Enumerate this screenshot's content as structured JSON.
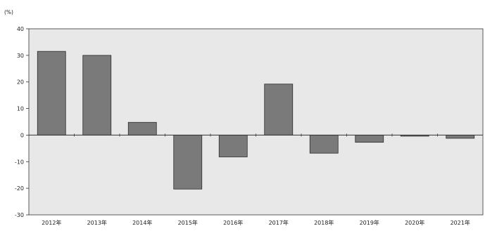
{
  "chart_data": {
    "type": "bar",
    "title": "",
    "unit_label": "(%)",
    "xlabel": "",
    "ylabel": "",
    "categories": [
      "2012年",
      "2013年",
      "2014年",
      "2015年",
      "2016年",
      "2017年",
      "2018年",
      "2019年",
      "2020年",
      "2021年"
    ],
    "values": [
      31.5,
      30.0,
      4.8,
      -20.3,
      -8.2,
      19.2,
      -6.8,
      -2.7,
      -0.4,
      -1.2
    ],
    "ylim": [
      -30,
      40
    ],
    "yticks": [
      40,
      30,
      20,
      10,
      0,
      -10,
      -20,
      -30
    ],
    "ytick_labels": [
      "40",
      "30",
      "20",
      "10",
      "0",
      "-10",
      "-20",
      "-30"
    ],
    "grid": false,
    "legend": "none",
    "colors": {
      "bar_fill": "#7a7a7a",
      "bar_stroke": "#2a2a2a",
      "plot_background": "#e8e8e8",
      "axis": "#333333"
    }
  }
}
